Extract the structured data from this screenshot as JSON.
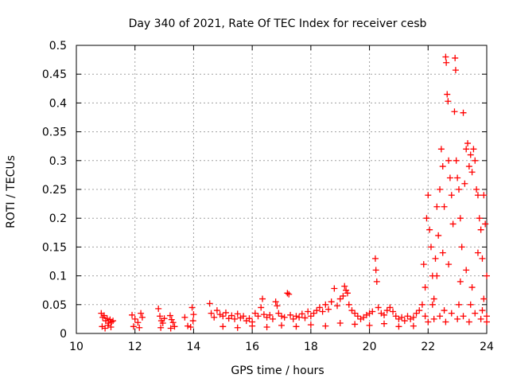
{
  "chart_data": {
    "type": "scatter",
    "title": "Day 340 of 2021, Rate Of TEC Index for receiver cesb",
    "xlabel": "GPS time / hours",
    "ylabel": "ROTI / TECUs",
    "xlim": [
      10,
      24
    ],
    "ylim": [
      0,
      0.5
    ],
    "xticks": [
      "10",
      "12",
      "14",
      "16",
      "18",
      "20",
      "22",
      "24"
    ],
    "yticks": [
      "0",
      "0.05",
      "0.1",
      "0.15",
      "0.2",
      "0.25",
      "0.3",
      "0.35",
      "0.4",
      "0.45",
      "0.5"
    ],
    "grid": true,
    "marker": "plus",
    "color": "#ff0000",
    "series": [
      {
        "points": [
          [
            10.85,
            0.035
          ],
          [
            10.9,
            0.028
          ],
          [
            10.95,
            0.031
          ],
          [
            11.0,
            0.022
          ],
          [
            11.05,
            0.026
          ],
          [
            11.1,
            0.018
          ],
          [
            11.15,
            0.024
          ],
          [
            11.2,
            0.02
          ],
          [
            10.88,
            0.012
          ],
          [
            10.98,
            0.009
          ],
          [
            11.08,
            0.014
          ],
          [
            11.18,
            0.011
          ],
          [
            11.25,
            0.022
          ],
          [
            11.9,
            0.032
          ],
          [
            12.0,
            0.025
          ],
          [
            12.1,
            0.019
          ],
          [
            12.2,
            0.035
          ],
          [
            12.25,
            0.028
          ],
          [
            11.95,
            0.012
          ],
          [
            12.15,
            0.01
          ],
          [
            12.8,
            0.043
          ],
          [
            12.85,
            0.03
          ],
          [
            12.9,
            0.022
          ],
          [
            12.95,
            0.018
          ],
          [
            13.0,
            0.026
          ],
          [
            12.88,
            0.01
          ],
          [
            13.2,
            0.031
          ],
          [
            13.25,
            0.024
          ],
          [
            13.3,
            0.019
          ],
          [
            13.35,
            0.012
          ],
          [
            13.22,
            0.009
          ],
          [
            13.7,
            0.028
          ],
          [
            13.8,
            0.013
          ],
          [
            13.9,
            0.011
          ],
          [
            13.95,
            0.045
          ],
          [
            14.0,
            0.033
          ],
          [
            13.98,
            0.022
          ],
          [
            14.55,
            0.052
          ],
          [
            14.6,
            0.035
          ],
          [
            14.7,
            0.028
          ],
          [
            14.8,
            0.04
          ],
          [
            14.9,
            0.033
          ],
          [
            15.0,
            0.03
          ],
          [
            15.1,
            0.036
          ],
          [
            15.2,
            0.026
          ],
          [
            15.3,
            0.031
          ],
          [
            15.4,
            0.025
          ],
          [
            15.5,
            0.034
          ],
          [
            15.6,
            0.027
          ],
          [
            15.7,
            0.03
          ],
          [
            15.8,
            0.022
          ],
          [
            15.9,
            0.026
          ],
          [
            16.0,
            0.02
          ],
          [
            16.1,
            0.035
          ],
          [
            16.2,
            0.03
          ],
          [
            16.3,
            0.045
          ],
          [
            16.35,
            0.06
          ],
          [
            16.4,
            0.033
          ],
          [
            16.5,
            0.028
          ],
          [
            16.6,
            0.032
          ],
          [
            16.7,
            0.025
          ],
          [
            16.8,
            0.055
          ],
          [
            16.85,
            0.048
          ],
          [
            16.9,
            0.035
          ],
          [
            17.0,
            0.03
          ],
          [
            17.1,
            0.028
          ],
          [
            17.2,
            0.07
          ],
          [
            17.25,
            0.068
          ],
          [
            17.3,
            0.032
          ],
          [
            17.4,
            0.025
          ],
          [
            17.5,
            0.03
          ],
          [
            17.6,
            0.028
          ],
          [
            17.7,
            0.034
          ],
          [
            17.8,
            0.027
          ],
          [
            17.9,
            0.038
          ],
          [
            18.0,
            0.03
          ],
          [
            18.1,
            0.035
          ],
          [
            18.2,
            0.04
          ],
          [
            18.3,
            0.045
          ],
          [
            18.4,
            0.038
          ],
          [
            18.5,
            0.05
          ],
          [
            18.6,
            0.042
          ],
          [
            18.7,
            0.055
          ],
          [
            18.8,
            0.078
          ],
          [
            18.9,
            0.048
          ],
          [
            19.0,
            0.06
          ],
          [
            19.1,
            0.065
          ],
          [
            19.15,
            0.082
          ],
          [
            19.2,
            0.075
          ],
          [
            19.25,
            0.07
          ],
          [
            19.3,
            0.05
          ],
          [
            19.4,
            0.04
          ],
          [
            19.5,
            0.035
          ],
          [
            19.6,
            0.03
          ],
          [
            19.7,
            0.025
          ],
          [
            19.8,
            0.028
          ],
          [
            19.9,
            0.032
          ],
          [
            20.0,
            0.035
          ],
          [
            20.1,
            0.038
          ],
          [
            20.2,
            0.13
          ],
          [
            20.22,
            0.11
          ],
          [
            20.25,
            0.09
          ],
          [
            20.3,
            0.045
          ],
          [
            20.4,
            0.035
          ],
          [
            20.5,
            0.032
          ],
          [
            20.6,
            0.04
          ],
          [
            20.7,
            0.045
          ],
          [
            20.8,
            0.038
          ],
          [
            20.9,
            0.03
          ],
          [
            21.0,
            0.025
          ],
          [
            21.1,
            0.028
          ],
          [
            21.2,
            0.022
          ],
          [
            21.3,
            0.03
          ],
          [
            21.4,
            0.025
          ],
          [
            21.5,
            0.028
          ],
          [
            21.6,
            0.035
          ],
          [
            21.7,
            0.04
          ],
          [
            15.0,
            0.012
          ],
          [
            15.5,
            0.01
          ],
          [
            16.0,
            0.013
          ],
          [
            16.5,
            0.011
          ],
          [
            17.0,
            0.014
          ],
          [
            17.5,
            0.012
          ],
          [
            18.0,
            0.015
          ],
          [
            18.5,
            0.013
          ],
          [
            19.0,
            0.018
          ],
          [
            19.5,
            0.016
          ],
          [
            20.0,
            0.014
          ],
          [
            20.5,
            0.017
          ],
          [
            21.0,
            0.012
          ],
          [
            21.5,
            0.013
          ],
          [
            21.8,
            0.05
          ],
          [
            21.85,
            0.12
          ],
          [
            21.9,
            0.08
          ],
          [
            21.95,
            0.2
          ],
          [
            22.0,
            0.24
          ],
          [
            22.05,
            0.18
          ],
          [
            22.1,
            0.15
          ],
          [
            22.15,
            0.1
          ],
          [
            22.2,
            0.06
          ],
          [
            22.25,
            0.13
          ],
          [
            22.3,
            0.22
          ],
          [
            22.35,
            0.17
          ],
          [
            22.4,
            0.25
          ],
          [
            22.45,
            0.32
          ],
          [
            22.5,
            0.29
          ],
          [
            22.55,
            0.22
          ],
          [
            22.6,
            0.48
          ],
          [
            22.62,
            0.47
          ],
          [
            22.65,
            0.415
          ],
          [
            22.68,
            0.403
          ],
          [
            22.7,
            0.3
          ],
          [
            22.75,
            0.27
          ],
          [
            22.8,
            0.24
          ],
          [
            22.85,
            0.19
          ],
          [
            22.9,
            0.385
          ],
          [
            22.92,
            0.478
          ],
          [
            22.94,
            0.457
          ],
          [
            22.96,
            0.3
          ],
          [
            23.0,
            0.27
          ],
          [
            23.05,
            0.25
          ],
          [
            23.1,
            0.2
          ],
          [
            23.15,
            0.15
          ],
          [
            23.2,
            0.383
          ],
          [
            23.25,
            0.26
          ],
          [
            23.3,
            0.32
          ],
          [
            23.35,
            0.33
          ],
          [
            23.4,
            0.29
          ],
          [
            23.45,
            0.31
          ],
          [
            23.5,
            0.28
          ],
          [
            23.55,
            0.32
          ],
          [
            23.6,
            0.3
          ],
          [
            23.65,
            0.25
          ],
          [
            23.7,
            0.24
          ],
          [
            23.75,
            0.2
          ],
          [
            23.8,
            0.18
          ],
          [
            23.85,
            0.13
          ],
          [
            23.9,
            0.24
          ],
          [
            23.95,
            0.19
          ],
          [
            21.9,
            0.03
          ],
          [
            22.0,
            0.02
          ],
          [
            22.2,
            0.025
          ],
          [
            22.4,
            0.03
          ],
          [
            22.6,
            0.02
          ],
          [
            22.8,
            0.035
          ],
          [
            23.0,
            0.025
          ],
          [
            23.2,
            0.03
          ],
          [
            23.4,
            0.02
          ],
          [
            23.6,
            0.035
          ],
          [
            23.8,
            0.025
          ],
          [
            24.0,
            0.03
          ],
          [
            22.3,
            0.1
          ],
          [
            22.7,
            0.12
          ],
          [
            23.1,
            0.09
          ],
          [
            23.5,
            0.08
          ],
          [
            23.9,
            0.06
          ],
          [
            22.5,
            0.14
          ],
          [
            23.3,
            0.11
          ],
          [
            23.7,
            0.14
          ],
          [
            24.0,
            0.1
          ],
          [
            22.15,
            0.05
          ],
          [
            22.55,
            0.04
          ],
          [
            23.05,
            0.05
          ],
          [
            23.45,
            0.05
          ],
          [
            23.85,
            0.04
          ],
          [
            24.0,
            0.02
          ]
        ]
      }
    ]
  }
}
